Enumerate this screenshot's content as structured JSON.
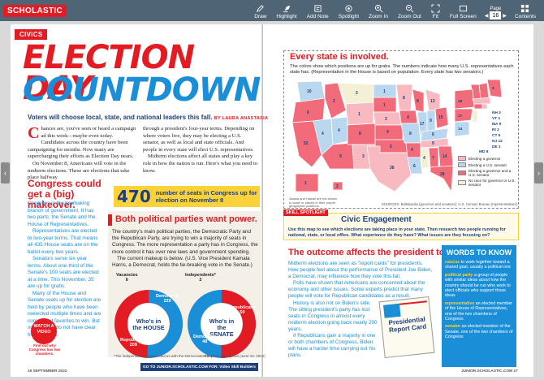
{
  "topbar": {
    "logo": "SCHOLASTIC",
    "tools": [
      {
        "label": "Draw",
        "icon": "pencil-icon"
      },
      {
        "label": "Highlight",
        "icon": "highlighter-icon"
      },
      {
        "label": "Add Note",
        "icon": "note-icon"
      },
      {
        "label": "Spotlight",
        "icon": "spotlight-icon"
      },
      {
        "label": "Zoom In",
        "icon": "zoom-in-icon"
      },
      {
        "label": "Zoom Out",
        "icon": "zoom-out-icon"
      },
      {
        "label": "Fit",
        "icon": "fit-icon"
      },
      {
        "label": "Full Screen",
        "icon": "fullscreen-icon"
      }
    ],
    "page_label": "Page",
    "page_value": "16",
    "contents_label": "Contents"
  },
  "left": {
    "section_tag": "CIVICS",
    "headline_1": "ELECTION DAY",
    "headline_2": "COUNTDOWN",
    "dek": "Voters will choose local, state, and national leaders this fall.",
    "byline": "BY LAURA ANASTASIA",
    "body_col1_dropcap": "C",
    "body_col1": "hances are, you've seen or heard a campaign ad this week—maybe even today. Candidates across the country have been campaigning for months. Now many are supercharging their efforts as Election Day nears.",
    "body_col1b": "On November 8, Americans will vote in the midterm elections. These are elections that take place halfway",
    "body_col2": "through a president's four-year terms. Depending on where voters live, they may be electing a U.S. senator, as well as local and state officials. And people in every state will elect U.S. representatives.",
    "body_col2b": "Midterm elections affect all states and play a key role in how the nation is run. Here's what you need to know.",
    "congress_head": "Congress could get a (big) makeover.",
    "congress_text": "Congress is the lawmaking branch of government. It has two parts: the Senate and the House of Representatives.",
    "congress_text2": "Representatives are elected to two-year terms. That means all 435 House seats are on the ballot every two years.",
    "congress_text3": "Senators serve six-year terms. About one-third of the Senate's 100 seats are elected at a time. This November, 35 are up for grabs.",
    "congress_text4": "Many of the House and Senate seats up for election are held by people who have been reelected multiple times and are considered favorites to win. But some races do not have clear front-runners.",
    "stat_number": "470",
    "stat_text": "number of seats in Congress up for election on November 8",
    "party_head": "Both political parties want power.",
    "party_text": "The country's main political parties, the Democratic Party and the Republican Party, are trying to win a majority of seats in Congress. The more representation a party has in Congress, the more control it has over new laws and government spending.",
    "party_text2": "The current makeup is below. (U.S. Vice President Kamala Harris, a Democrat, holds the tie-breaking vote in the Senate.)",
    "house_center": "Who's in the HOUSE",
    "senate_center": "Who's in the SENATE",
    "vacancies_label": "Vacancies",
    "vacancies_value": "6",
    "independents_label": "Independents*",
    "independents_value": "2",
    "dem_house_label": "Democrats",
    "dem_house_value": "220",
    "rep_house_label": "Republicans",
    "rep_house_value": "209",
    "rep_senate_label": "Republicans",
    "rep_senate_value": "50",
    "dem_senate_label": "Democrats",
    "dem_senate_value": "48",
    "footnote": "*The independent senators caucus with the Democratic Party.",
    "party_source": "SOURCE: Ballotpedia (June 16, 2022)",
    "watch_video": "WATCH A VIDEO",
    "watch_sub": "Find out why Congress has two chambers.",
    "folio": "16   SEPTEMBER 2022",
    "bottombar": "GO TO JUNIOR.SCHOLASTIC.COM FOR:   Video   Skill Builders"
  },
  "right": {
    "map_head": "Every state is involved.",
    "map_intro": "The colors show which positions are up for grabs. The numbers indicate how many U.S. representatives each state has. (Representation in the House is based on population. Every state has two senators.)",
    "legend": [
      {
        "label": "Electing a governor",
        "color": "#f8b9c1"
      },
      {
        "label": "Electing a U.S. senator",
        "color": "#b9d8f0"
      },
      {
        "label": "Electing a governor and a U.S. senator",
        "color": "#f26b7a"
      },
      {
        "label": "No race for governor or U.S. senator",
        "color": "#f4f0d6"
      }
    ],
    "alaska_note": "Alaska and Hawaii are not shown to scale or placed in their proper geographic positions.",
    "map_source": "SOURCES: Ballotpedia (governor and senators); U.S. Census Bureau (representatives)",
    "spot_tag": "SKILL SPOTLIGHT",
    "spot_title": "Civic Engagement",
    "spot_text": "Use this map to see which elections are taking place in your state. Then research two people running for national, state, or local office. What experience do they have? What issues are they focusing on?",
    "outcome_head": "The outcome affects the president too.",
    "outcome_p1": "Midterm elections are seen as \"report cards\" for presidents. How people feel about the performance of President Joe Biden, a Democrat, may influence how they vote this fall.",
    "outcome_p2": "Polls have shown that Americans are concerned about the economy and other issues. Some experts predict that many people will vote for Republican candidates as a result.",
    "outcome_p3": "History is also not on Biden's side. The sitting president's party has lost seats in Congress in almost every midterm election going back nearly 200 years.",
    "outcome_p4": "If Republicans gain a majority in one or both chambers of Congress, Biden will have a harder time carrying out his plans.",
    "card_text": "Presidential Report Card",
    "wtk_head": "WORDS TO KNOW",
    "wtk": [
      {
        "term": "caucus",
        "def": "to work together toward a shared goal, usually a political one"
      },
      {
        "term": "political party",
        "def": "a group of people with similar ideas about how the country should be run who work to elect officials who support those ideas"
      },
      {
        "term": "representative",
        "def": "an elected member of the House of Representatives, one of the two chambers of Congress"
      },
      {
        "term": "senator",
        "def": "an elected member of the Senate, one of the two chambers of Congress"
      }
    ],
    "folio": "JUNIOR.SCHOLASTIC.COM   17"
  }
}
